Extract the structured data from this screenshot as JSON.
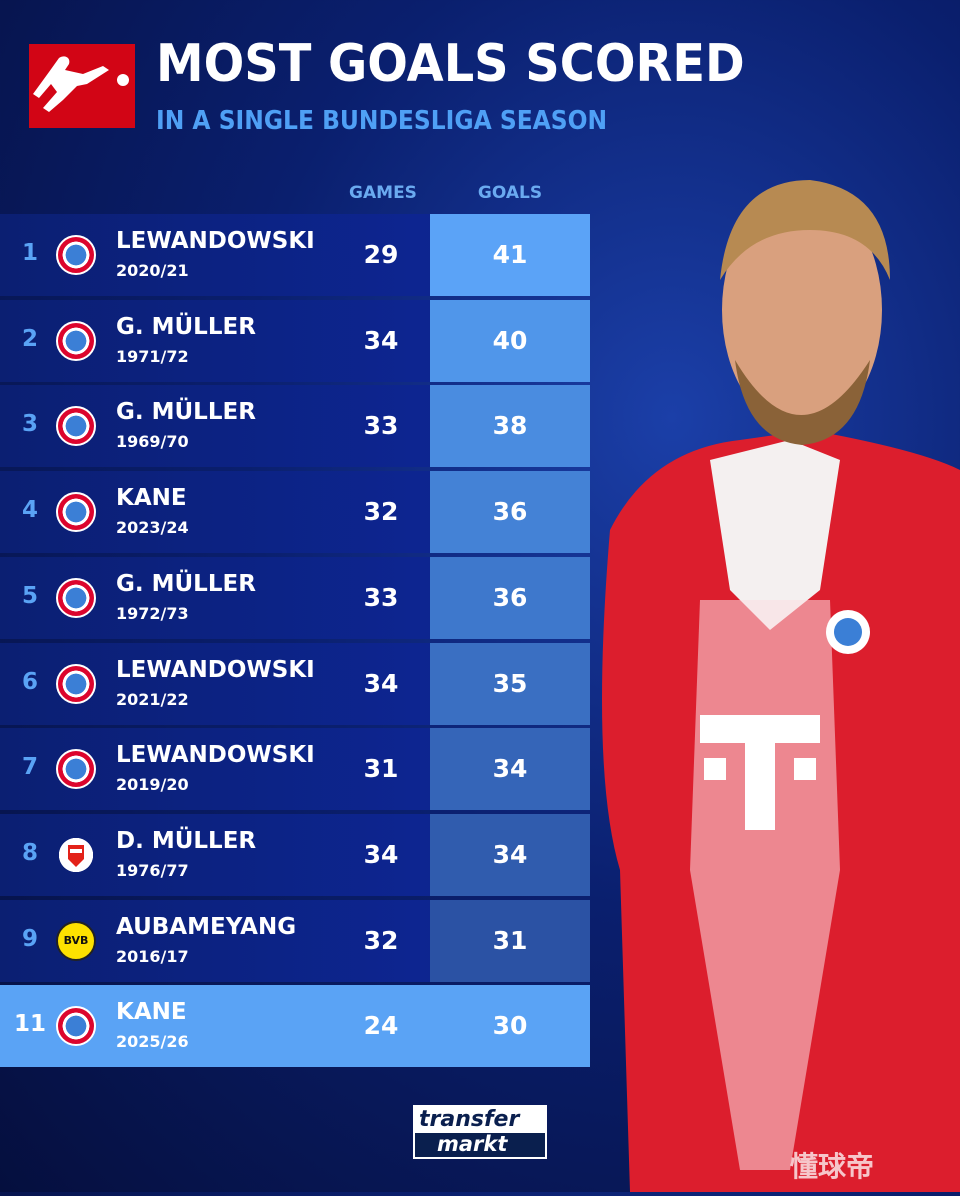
{
  "header": {
    "title": "MOST GOALS SCORED",
    "subtitle": "IN A SINGLE BUNDESLIGA SEASON",
    "logo": "bundesliga-logo"
  },
  "columns": {
    "games": "GAMES",
    "goals": "GOALS"
  },
  "rows": [
    {
      "rank": "1",
      "club": "fc-bayern",
      "name": "LEWANDOWSKI",
      "season": "2020/21",
      "games": "29",
      "goals": "41",
      "goals_color": "#5ba3f7"
    },
    {
      "rank": "2",
      "club": "fc-bayern",
      "name": "G. MÜLLER",
      "season": "1971/72",
      "games": "34",
      "goals": "40",
      "goals_color": "#5096ea"
    },
    {
      "rank": "3",
      "club": "fc-bayern",
      "name": "G. MÜLLER",
      "season": "1969/70",
      "games": "33",
      "goals": "38",
      "goals_color": "#4a8ce0"
    },
    {
      "rank": "4",
      "club": "fc-bayern",
      "name": "KANE",
      "season": "2023/24",
      "games": "32",
      "goals": "36",
      "goals_color": "#4482d6"
    },
    {
      "rank": "5",
      "club": "fc-bayern",
      "name": "G. MÜLLER",
      "season": "1972/73",
      "games": "33",
      "goals": "36",
      "goals_color": "#3e78cc"
    },
    {
      "rank": "6",
      "club": "fc-bayern",
      "name": "LEWANDOWSKI",
      "season": "2021/22",
      "games": "34",
      "goals": "35",
      "goals_color": "#3a6fc2"
    },
    {
      "rank": "7",
      "club": "fc-bayern",
      "name": "LEWANDOWSKI",
      "season": "2019/20",
      "games": "31",
      "goals": "34",
      "goals_color": "#3565b8"
    },
    {
      "rank": "8",
      "club": "fc-koln",
      "name": "D. MÜLLER",
      "season": "1976/77",
      "games": "34",
      "goals": "34",
      "goals_color": "#305cae"
    },
    {
      "rank": "9",
      "club": "bvb",
      "name": "AUBAMEYANG",
      "season": "2016/17",
      "games": "32",
      "goals": "31",
      "goals_color": "#2b52a4"
    },
    {
      "rank": "11",
      "club": "fc-bayern",
      "name": "KANE",
      "season": "2025/26",
      "games": "24",
      "goals": "30",
      "goals_color": "#5aa3f5",
      "highlight": true
    }
  ],
  "bvb_text": "BVB",
  "footer": {
    "brand_line1": "transfer",
    "brand_line2": "markt",
    "watermark": "懂球帝"
  }
}
